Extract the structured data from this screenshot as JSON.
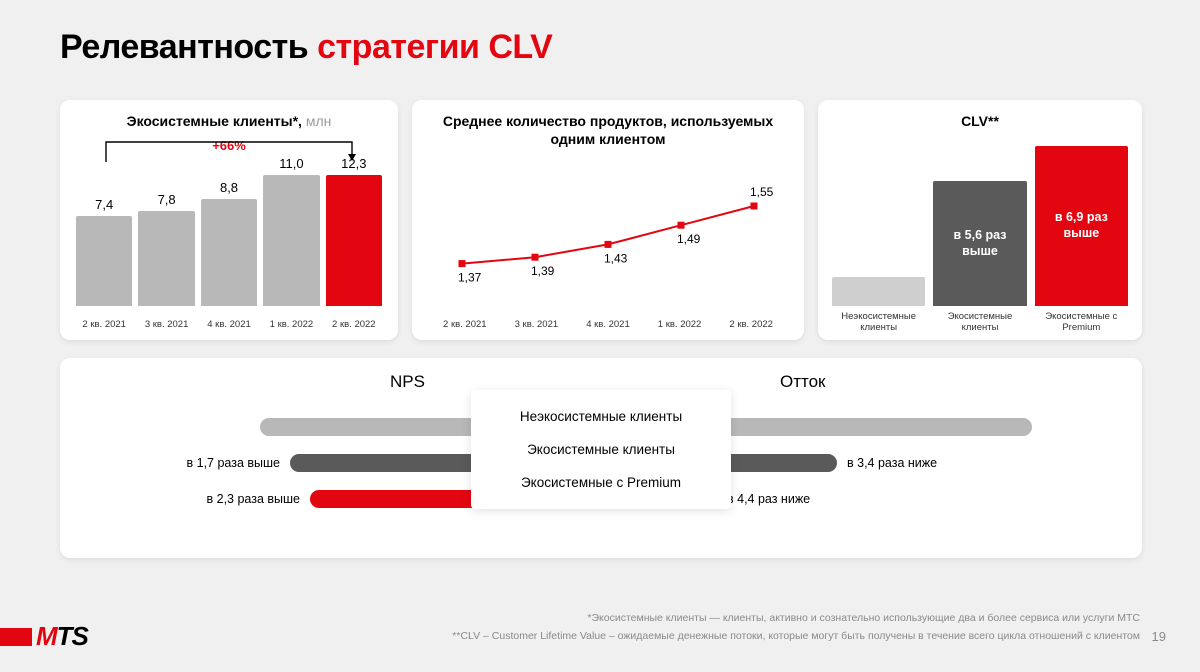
{
  "title_black": "Релевантность ",
  "title_red": "стратегии CLV",
  "colors": {
    "red": "#e30611",
    "gray_bar": "#b8b8b8",
    "dark_gray": "#5a5a5a",
    "light_gray": "#cfcfcf",
    "bg": "#f0f0f0"
  },
  "panel1": {
    "title": "Экосистемные клиенты*, ",
    "unit": "млн",
    "growth": "+66%",
    "xlabels": [
      "2 кв. 2021",
      "3 кв. 2021",
      "4 кв. 2021",
      "1 кв. 2022",
      "2 кв. 2022"
    ],
    "values": [
      7.4,
      7.8,
      8.8,
      11.0,
      12.3
    ],
    "value_labels": [
      "7,4",
      "7,8",
      "8,8",
      "11,0",
      "12,3"
    ],
    "bar_colors": [
      "#b8b8b8",
      "#b8b8b8",
      "#b8b8b8",
      "#b8b8b8",
      "#e30611"
    ],
    "ymax": 12.3
  },
  "panel2": {
    "title": "Среднее количество продуктов, используемых одним клиентом",
    "xlabels": [
      "2 кв. 2021",
      "3 кв. 2021",
      "4 кв. 2021",
      "1 кв. 2022",
      "2 кв. 2022"
    ],
    "values": [
      1.37,
      1.39,
      1.43,
      1.49,
      1.55
    ],
    "value_labels": [
      "1,37",
      "1,39",
      "1,43",
      "1,49",
      "1,55"
    ],
    "ymin": 1.3,
    "ymax": 1.6,
    "line_color": "#e30611"
  },
  "panel3": {
    "title": "CLV**",
    "xlabels": [
      "Неэкосистемные клиенты",
      "Экосистемные клиенты",
      "Экосистемные с Premium"
    ],
    "heights": [
      0.18,
      0.78,
      1.0
    ],
    "bar_colors": [
      "#cfcfcf",
      "#5a5a5a",
      "#e30611"
    ],
    "bar_text": [
      "",
      "в 5,6 раз выше",
      "в 6,9 раз выше"
    ]
  },
  "panel4": {
    "nps_title": "NPS",
    "churn_title": "Отток",
    "rows": [
      {
        "label": "Неэкосистемные клиенты",
        "color": "#b8b8b8",
        "nps_w": 340,
        "nps_lbl": "",
        "churn_w": 430,
        "churn_lbl": ""
      },
      {
        "label": "Экосистемные клиенты",
        "color": "#5a5a5a",
        "nps_w": 310,
        "nps_lbl": "в 1,7 раза выше",
        "churn_w": 235,
        "churn_lbl": "в 3,4 раза ниже"
      },
      {
        "label": "Экосистемные с Premium",
        "color": "#e30611",
        "nps_w": 290,
        "nps_lbl": "в 2,3 раза выше",
        "churn_w": 115,
        "churn_lbl": "в 4,4 раз ниже"
      }
    ]
  },
  "footnote1": "*Экосистемные клиенты — клиенты, активно и сознательно использующие два и более сервиса или услуги МТС",
  "footnote2": "**CLV – Customer Lifetime Value – ожидаемые денежные потоки, которые могут быть получены в течение всего цикла отношений с клиентом",
  "page": "19",
  "logo": "MTS"
}
